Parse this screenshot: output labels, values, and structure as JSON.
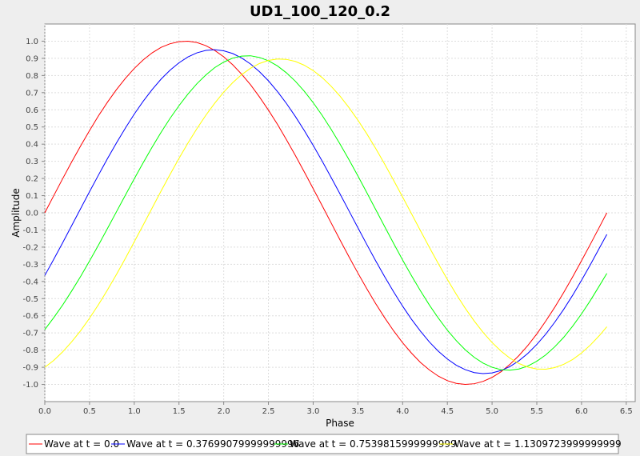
{
  "chart_data": {
    "type": "line",
    "title": "UD1_100_120_0.2",
    "xlabel": "Phase",
    "ylabel": "Amplitude",
    "xlim": [
      0.0,
      6.6
    ],
    "ylim": [
      -1.1,
      1.1
    ],
    "x_ticks": [
      "0.0",
      "0.5",
      "1.0",
      "1.5",
      "2.0",
      "2.5",
      "3.0",
      "3.5",
      "4.0",
      "4.5",
      "5.0",
      "5.5",
      "6.0",
      "6.5"
    ],
    "y_ticks": [
      "-1.0",
      "-0.9",
      "-0.8",
      "-0.7",
      "-0.6",
      "-0.5",
      "-0.4",
      "-0.3",
      "-0.2",
      "-0.1",
      "0.0",
      "0.1",
      "0.2",
      "0.3",
      "0.4",
      "0.5",
      "0.6",
      "0.7",
      "0.8",
      "0.9",
      "1.0"
    ],
    "grid": true,
    "legend_position": "bottom",
    "x": [
      0.0,
      0.1,
      0.2,
      0.3,
      0.4,
      0.5,
      0.6,
      0.7,
      0.8,
      0.9,
      1.0,
      1.1,
      1.2,
      1.3,
      1.4,
      1.5,
      1.6,
      1.7,
      1.8,
      1.9,
      2.0,
      2.1,
      2.2,
      2.3,
      2.4,
      2.5,
      2.6,
      2.7,
      2.8,
      2.9,
      3.0,
      3.1,
      3.2,
      3.3,
      3.4,
      3.5,
      3.6,
      3.7,
      3.8,
      3.9,
      4.0,
      4.1,
      4.2,
      4.3,
      4.4,
      4.5,
      4.6,
      4.7,
      4.8,
      4.9,
      5.0,
      5.1,
      5.2,
      5.3,
      5.4,
      5.5,
      5.6,
      5.7,
      5.8,
      5.9,
      6.0,
      6.1,
      6.2,
      6.283
    ],
    "series": [
      {
        "name": "Wave at t = 0.0",
        "color": "#ff0000",
        "y": [
          0.0,
          0.1,
          0.199,
          0.296,
          0.389,
          0.479,
          0.565,
          0.644,
          0.717,
          0.783,
          0.841,
          0.891,
          0.932,
          0.964,
          0.985,
          0.997,
          1.0,
          0.992,
          0.974,
          0.946,
          0.909,
          0.863,
          0.808,
          0.746,
          0.675,
          0.598,
          0.516,
          0.427,
          0.335,
          0.239,
          0.141,
          0.042,
          -0.058,
          -0.158,
          -0.256,
          -0.351,
          -0.443,
          -0.53,
          -0.612,
          -0.688,
          -0.757,
          -0.818,
          -0.872,
          -0.916,
          -0.952,
          -0.978,
          -0.994,
          -1.0,
          -0.996,
          -0.982,
          -0.959,
          -0.926,
          -0.883,
          -0.832,
          -0.773,
          -0.706,
          -0.631,
          -0.551,
          -0.465,
          -0.374,
          -0.279,
          -0.182,
          -0.083,
          0.0
        ]
      },
      {
        "name": "Wave at t = 0.37699079999999996",
        "color": "#0000ff",
        "y": [
          -0.365,
          -0.271,
          -0.174,
          -0.075,
          0.024,
          0.123,
          0.22,
          0.315,
          0.406,
          0.493,
          0.575,
          0.65,
          0.718,
          0.779,
          0.831,
          0.874,
          0.908,
          0.932,
          0.946,
          0.95,
          0.944,
          0.928,
          0.902,
          0.867,
          0.822,
          0.769,
          0.707,
          0.638,
          0.562,
          0.48,
          0.393,
          0.302,
          0.207,
          0.11,
          0.012,
          -0.087,
          -0.185,
          -0.281,
          -0.373,
          -0.461,
          -0.544,
          -0.621,
          -0.69,
          -0.753,
          -0.807,
          -0.852,
          -0.888,
          -0.914,
          -0.931,
          -0.937,
          -0.933,
          -0.919,
          -0.896,
          -0.862,
          -0.819,
          -0.767,
          -0.707,
          -0.638,
          -0.563,
          -0.481,
          -0.393,
          -0.301,
          -0.205,
          -0.126
        ]
      },
      {
        "name": "Wave at t = 0.7539815999999999",
        "color": "#00ff00",
        "y": [
          -0.68,
          -0.611,
          -0.537,
          -0.456,
          -0.371,
          -0.281,
          -0.188,
          -0.092,
          0.005,
          0.102,
          0.198,
          0.292,
          0.383,
          0.469,
          0.55,
          0.624,
          0.692,
          0.752,
          0.803,
          0.846,
          0.878,
          0.901,
          0.913,
          0.915,
          0.905,
          0.886,
          0.856,
          0.816,
          0.767,
          0.709,
          0.642,
          0.568,
          0.487,
          0.401,
          0.31,
          0.215,
          0.117,
          0.018,
          -0.081,
          -0.179,
          -0.275,
          -0.367,
          -0.455,
          -0.538,
          -0.614,
          -0.684,
          -0.745,
          -0.798,
          -0.842,
          -0.876,
          -0.9,
          -0.914,
          -0.917,
          -0.91,
          -0.893,
          -0.865,
          -0.828,
          -0.781,
          -0.726,
          -0.661,
          -0.589,
          -0.51,
          -0.425,
          -0.353
        ]
      },
      {
        "name": "Wave at t = 1.1309723999999999",
        "color": "#ffff00",
        "y": [
          -0.9,
          -0.86,
          -0.81,
          -0.752,
          -0.687,
          -0.614,
          -0.535,
          -0.45,
          -0.36,
          -0.266,
          -0.169,
          -0.071,
          0.028,
          0.127,
          0.223,
          0.317,
          0.406,
          0.49,
          0.568,
          0.639,
          0.703,
          0.758,
          0.805,
          0.842,
          0.87,
          0.888,
          0.896,
          0.894,
          0.882,
          0.86,
          0.829,
          0.788,
          0.738,
          0.68,
          0.613,
          0.54,
          0.46,
          0.374,
          0.283,
          0.189,
          0.092,
          -0.006,
          -0.105,
          -0.202,
          -0.297,
          -0.388,
          -0.475,
          -0.556,
          -0.63,
          -0.697,
          -0.756,
          -0.806,
          -0.847,
          -0.878,
          -0.899,
          -0.91,
          -0.911,
          -0.902,
          -0.883,
          -0.855,
          -0.817,
          -0.77,
          -0.715,
          -0.664
        ]
      }
    ]
  }
}
